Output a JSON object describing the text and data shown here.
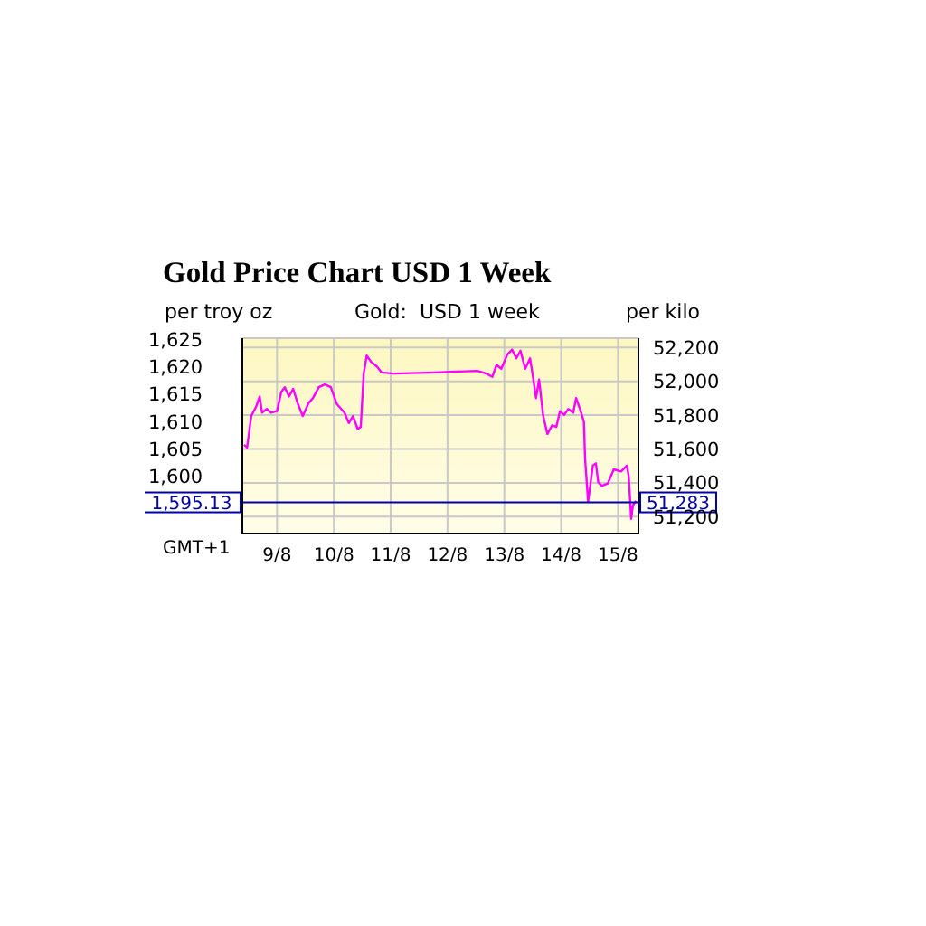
{
  "chart_data": {
    "type": "line",
    "title": "Gold Price Chart USD 1 Week",
    "subtitle": "Gold:  USD 1 week",
    "ylabel": "per troy oz",
    "y2label": "per kilo",
    "annotations": [
      "GMT+1",
      "51,283"
    ],
    "x": [
      "--08-08T10:06",
      "--08-08T11:22",
      "--08-08T13:08",
      "--08-08T15:10",
      "--08-08T16:41",
      "--08-08T17:41",
      "--08-08T19:42",
      "--08-08T21:29",
      "--08-09T00:00",
      "--08-09T01:47",
      "--08-09T03:17",
      "--08-09T05:04",
      "--08-09T06:49",
      "--08-09T08:50",
      "--08-09T10:52",
      "--08-09T13:23",
      "--08-09T15:10",
      "--08-09T17:41",
      "--08-09T20:12",
      "--08-09T22:44",
      "--08-10T01:16",
      "--08-10T04:32",
      "--08-10T06:19",
      "--08-10T08:05",
      "--08-10T10:06",
      "--08-10T11:22",
      "--08-10T12:37",
      "--08-10T13:53",
      "--08-10T15:40",
      "--08-10T18:11",
      "--08-10T20:12",
      "--08-11T01:16",
      "--08-11T18:56",
      "--08-12T12:37",
      "--08-12T16:25",
      "--08-12T18:56",
      "--08-12T20:43",
      "--08-12T22:44",
      "--08-13T01:16",
      "--08-13T03:17",
      "--08-13T05:04",
      "--08-13T06:49",
      "--08-13T08:50",
      "--08-13T10:52",
      "--08-13T11:53",
      "--08-13T13:23",
      "--08-13T14:40",
      "--08-13T16:25",
      "--08-13T18:11",
      "--08-13T20:12",
      "--08-13T21:59",
      "--08-13T23:30",
      "--08-14T01:16",
      "--08-14T03:01",
      "--08-14T05:04",
      "--08-14T06:19",
      "--08-14T08:05",
      "--08-14T09:36",
      "--08-14T10:06",
      "--08-14T11:22",
      "--08-14T13:23",
      "--08-14T14:40",
      "--08-14T15:40",
      "--08-14T17:11",
      "--08-14T19:42",
      "--08-14T22:13",
      "--08-15T01:16",
      "--08-15T03:47",
      "--08-15T04:32",
      "--08-15T05:34",
      "--08-15T06:19",
      "--08-15T07:35"
    ],
    "series": [
      {
        "color": "#ff00ff",
        "values": [
          1605.7,
          1605.2,
          1611.0,
          1612.7,
          1614.6,
          1611.6,
          1612.3,
          1611.6,
          1611.9,
          1615.4,
          1616.3,
          1614.6,
          1616.0,
          1613.2,
          1611.0,
          1613.4,
          1614.3,
          1616.3,
          1616.8,
          1616.3,
          1613.2,
          1611.6,
          1609.7,
          1611.0,
          1608.6,
          1609.0,
          1618.8,
          1622.1,
          1621.0,
          1620.1,
          1619.0,
          1618.8,
          1619.0,
          1619.3,
          1618.8,
          1618.2,
          1620.4,
          1619.7,
          1622.3,
          1623.2,
          1621.6,
          1623.0,
          1619.7,
          1621.6,
          1618.8,
          1614.3,
          1617.7,
          1611.0,
          1607.7,
          1609.3,
          1609.0,
          1611.9,
          1611.2,
          1612.3,
          1611.6,
          1614.3,
          1612.1,
          1609.9,
          1603.2,
          1595.2,
          1601.9,
          1602.3,
          1598.8,
          1598.2,
          1598.6,
          1601.2,
          1600.8,
          1601.9,
          1599.9,
          1592.1,
          1594.6,
          1595.4
        ]
      }
    ],
    "xlim": [
      "--08-08T09:22",
      "--08-15T08:38"
    ],
    "xticks": [
      {
        "value": "--08-09",
        "label": "9/8"
      },
      {
        "value": "--08-10",
        "label": "10/8"
      },
      {
        "value": "--08-11",
        "label": "11/8"
      },
      {
        "value": "--08-12",
        "label": "12/8"
      },
      {
        "value": "--08-13",
        "label": "13/8"
      },
      {
        "value": "--08-14",
        "label": "14/8"
      },
      {
        "value": "--08-15",
        "label": "15/8"
      }
    ],
    "ylim": [
      1589.4,
      1625.3
    ],
    "yticks": [
      {
        "value": 1600,
        "label": "1,600"
      },
      {
        "value": 1605,
        "label": "1,605"
      },
      {
        "value": 1610,
        "label": "1,610"
      },
      {
        "value": 1615,
        "label": "1,615"
      },
      {
        "value": 1620,
        "label": "1,620"
      },
      {
        "value": 1625,
        "label": "1,625"
      }
    ],
    "y2lim": [
      51100,
      52255
    ],
    "y2ticks": [
      {
        "value": 51200,
        "label": "51,200"
      },
      {
        "value": 51400,
        "label": "51,400"
      },
      {
        "value": 51600,
        "label": "51,600"
      },
      {
        "value": 51800,
        "label": "51,800"
      },
      {
        "value": 52000,
        "label": "52,000"
      },
      {
        "value": 52200,
        "label": "52,200"
      }
    ],
    "ref_lines": [
      {
        "axis": "y",
        "value": 1595.13,
        "label": "1,595.13",
        "color": "#0000aa"
      }
    ],
    "grid": true
  }
}
